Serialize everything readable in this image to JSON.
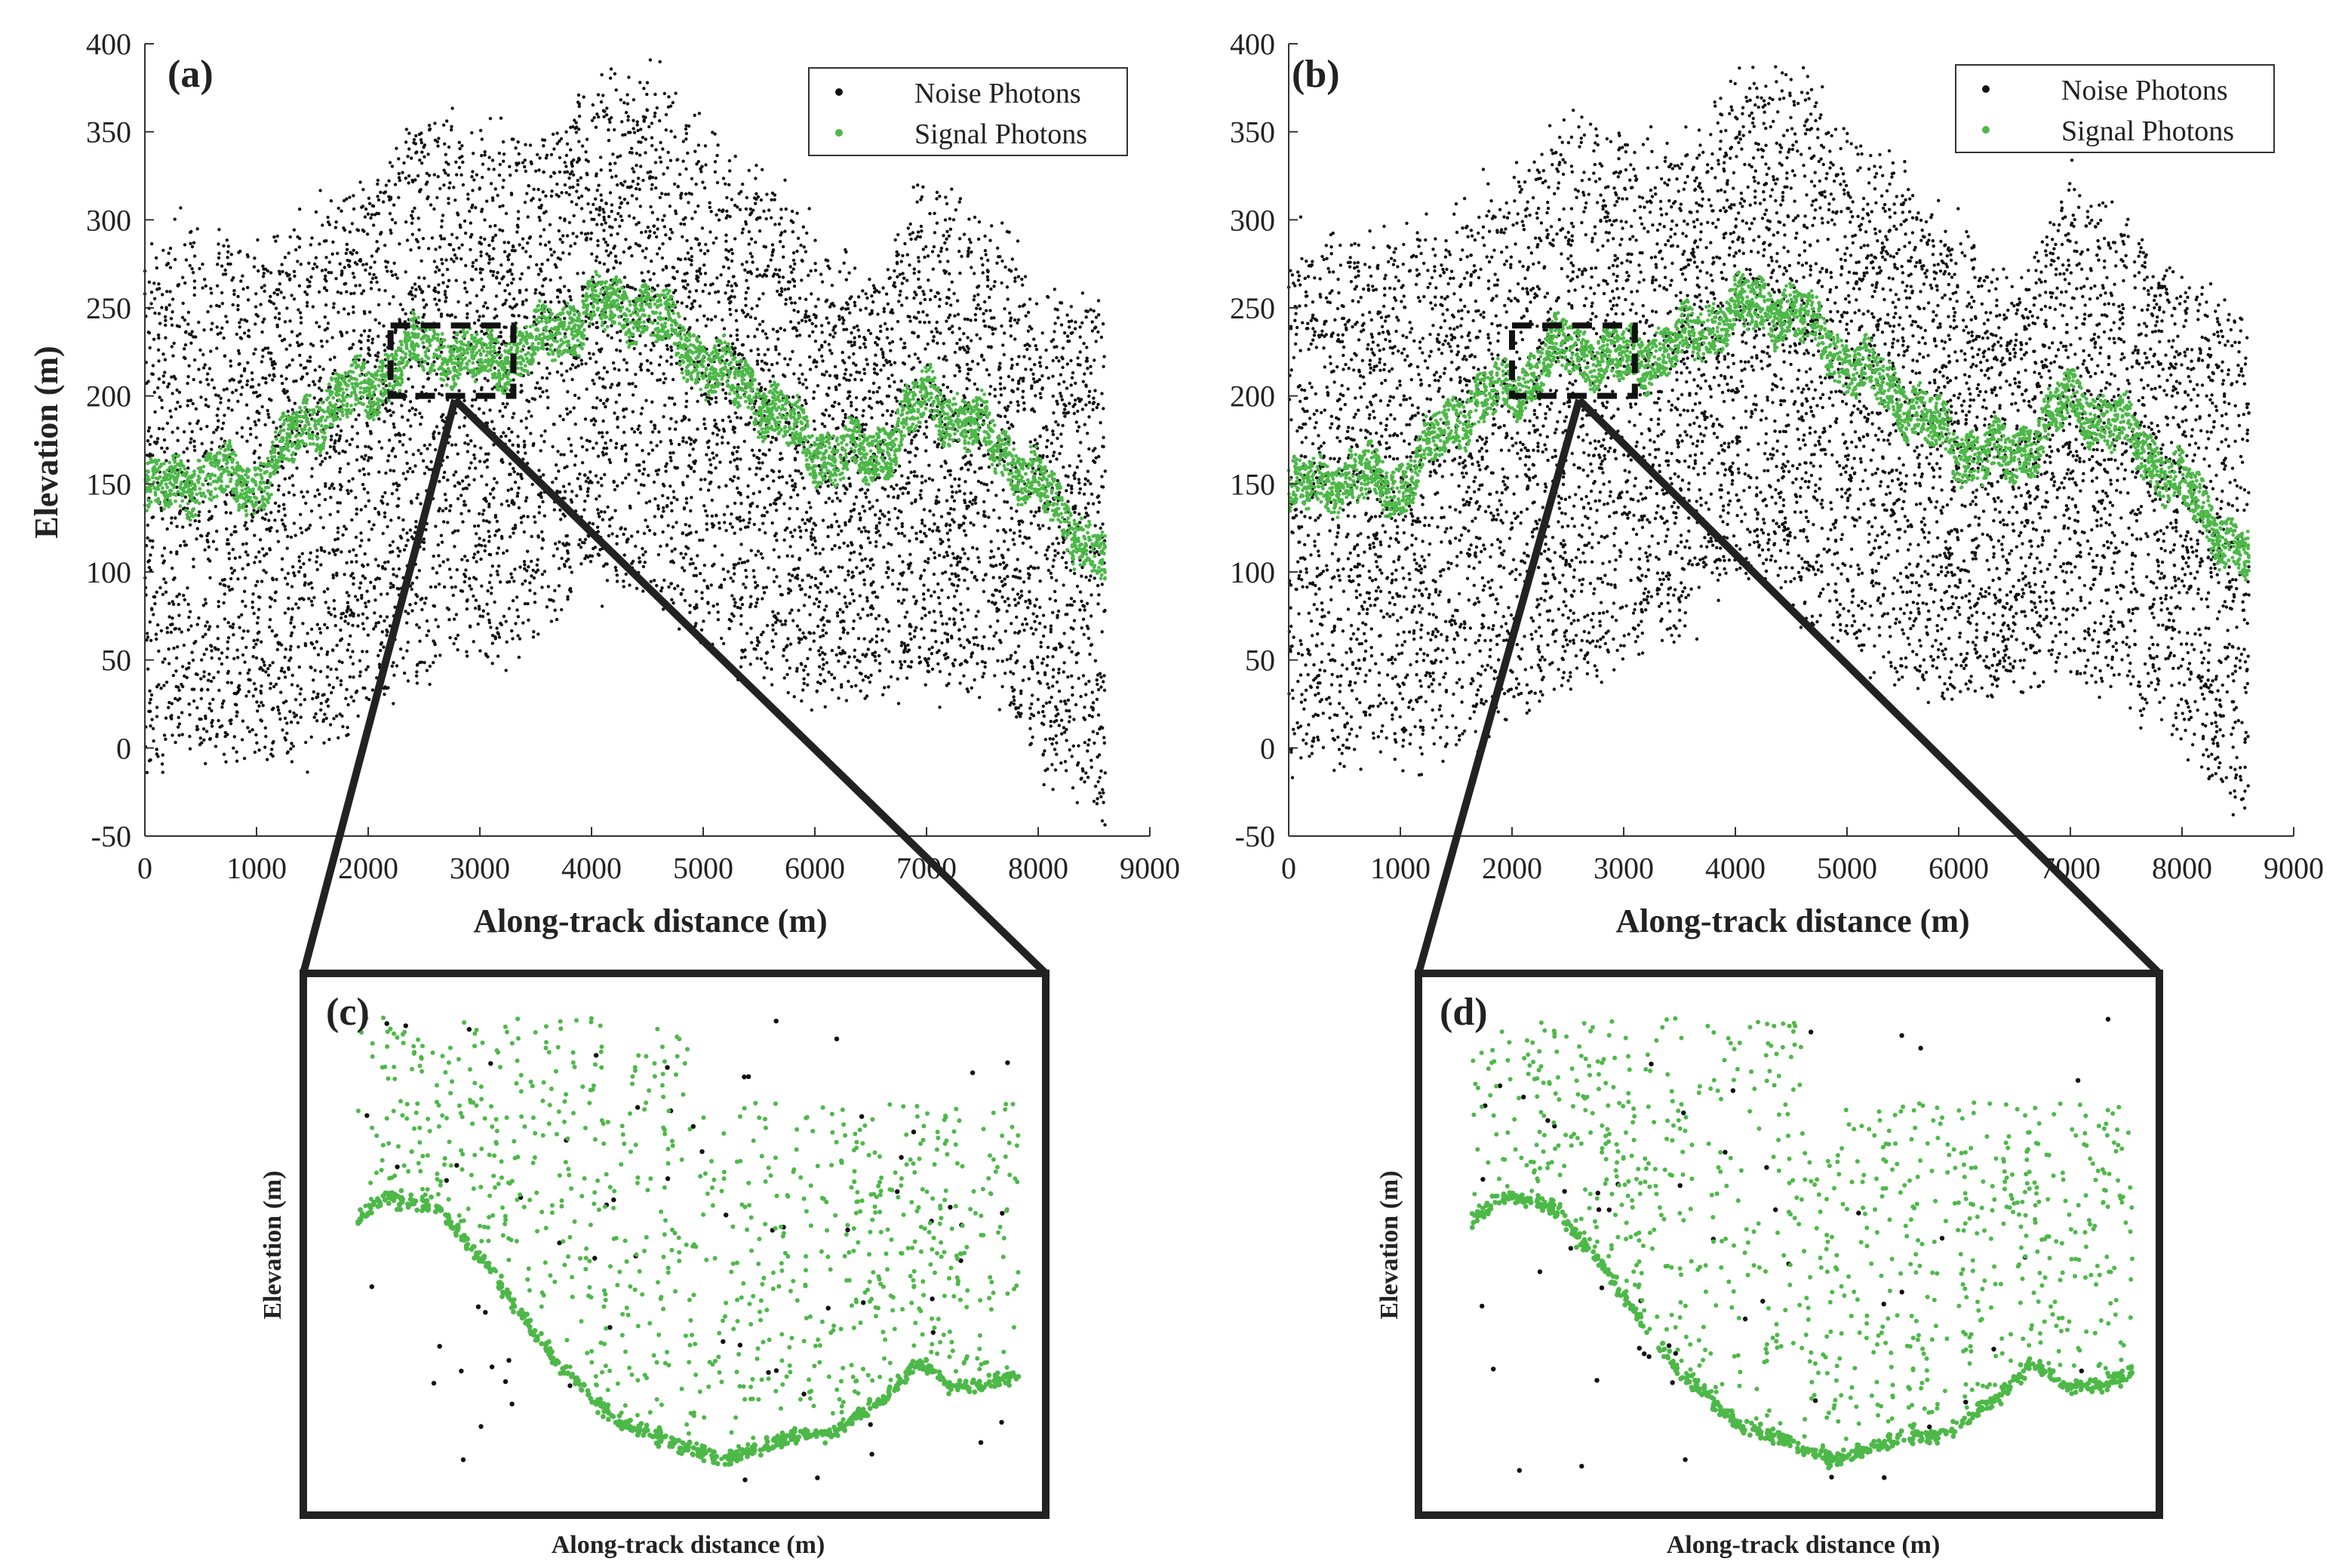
{
  "figure": {
    "colors": {
      "noise": "#111111",
      "signal": "#4db848",
      "axis": "#333333",
      "frame": "#222222"
    }
  },
  "chart_data": [
    {
      "id": "a",
      "panel_label": "(a)",
      "type": "scatter",
      "xlabel": "Along-track distance (m)",
      "ylabel": "Elevation (m)",
      "xlim": [
        0,
        9000
      ],
      "ylim": [
        -50,
        400
      ],
      "x_ticks": [
        "0",
        "1000",
        "2000",
        "3000",
        "4000",
        "5000",
        "6000",
        "7000",
        "8000",
        "9000"
      ],
      "y_ticks": [
        "-50",
        "0",
        "50",
        "100",
        "150",
        "200",
        "250",
        "300",
        "350",
        "400"
      ],
      "legend": {
        "placement": "top-right",
        "entries": [
          "Noise Photons",
          "Signal Photons"
        ]
      },
      "series": [
        {
          "name": "Noise Photons",
          "role": "noise",
          "upper_envelope": [
            [
              0,
              280
            ],
            [
              500,
              290
            ],
            [
              1000,
              285
            ],
            [
              1500,
              300
            ],
            [
              2000,
              320
            ],
            [
              2500,
              355
            ],
            [
              3000,
              345
            ],
            [
              3500,
              340
            ],
            [
              4000,
              375
            ],
            [
              4500,
              385
            ],
            [
              5000,
              350
            ],
            [
              5500,
              320
            ],
            [
              6000,
              290
            ],
            [
              6500,
              260
            ],
            [
              7000,
              320
            ],
            [
              7500,
              300
            ],
            [
              8000,
              260
            ],
            [
              8600,
              250
            ]
          ],
          "lower_envelope": [
            [
              0,
              -10
            ],
            [
              500,
              0
            ],
            [
              1000,
              -5
            ],
            [
              1500,
              0
            ],
            [
              2000,
              20
            ],
            [
              2500,
              40
            ],
            [
              3000,
              55
            ],
            [
              3500,
              60
            ],
            [
              4000,
              100
            ],
            [
              4500,
              90
            ],
            [
              5000,
              60
            ],
            [
              5500,
              40
            ],
            [
              6000,
              30
            ],
            [
              6500,
              35
            ],
            [
              7000,
              40
            ],
            [
              7500,
              30
            ],
            [
              8000,
              0
            ],
            [
              8600,
              -40
            ]
          ]
        },
        {
          "name": "Signal Photons",
          "role": "signal",
          "ground_profile": [
            [
              0,
              140
            ],
            [
              500,
              150
            ],
            [
              1000,
              145
            ],
            [
              1500,
              185
            ],
            [
              2000,
              200
            ],
            [
              2500,
              225
            ],
            [
              3000,
              215
            ],
            [
              3500,
              225
            ],
            [
              4000,
              245
            ],
            [
              4500,
              245
            ],
            [
              5000,
              215
            ],
            [
              5500,
              195
            ],
            [
              6000,
              165
            ],
            [
              6500,
              160
            ],
            [
              7000,
              195
            ],
            [
              7500,
              175
            ],
            [
              8000,
              145
            ],
            [
              8600,
              100
            ]
          ],
          "band_width_m": 28
        }
      ],
      "zoom_box": {
        "x_range": [
          2200,
          3300
        ],
        "y_range": [
          200,
          240
        ]
      }
    },
    {
      "id": "b",
      "panel_label": "(b)",
      "type": "scatter",
      "xlabel": "Along-track distance (m)",
      "ylabel": "",
      "xlim": [
        0,
        9000
      ],
      "ylim": [
        -50,
        400
      ],
      "x_ticks": [
        "0",
        "1000",
        "2000",
        "3000",
        "4000",
        "5000",
        "6000",
        "7000",
        "8000",
        "9000"
      ],
      "y_ticks": [
        "-50",
        "0",
        "50",
        "100",
        "150",
        "200",
        "250",
        "300",
        "350",
        "400"
      ],
      "legend": {
        "placement": "top-right",
        "entries": [
          "Noise Photons",
          "Signal Photons"
        ]
      },
      "series": [
        {
          "name": "Noise Photons",
          "role": "noise",
          "upper_envelope": [
            [
              0,
              280
            ],
            [
              500,
              290
            ],
            [
              1000,
              285
            ],
            [
              1500,
              300
            ],
            [
              2000,
              320
            ],
            [
              2500,
              355
            ],
            [
              3000,
              345
            ],
            [
              3500,
              340
            ],
            [
              4000,
              375
            ],
            [
              4500,
              385
            ],
            [
              5000,
              350
            ],
            [
              5500,
              320
            ],
            [
              6000,
              290
            ],
            [
              6500,
              260
            ],
            [
              7000,
              320
            ],
            [
              7500,
              300
            ],
            [
              8000,
              260
            ],
            [
              8600,
              250
            ]
          ],
          "lower_envelope": [
            [
              0,
              -10
            ],
            [
              500,
              0
            ],
            [
              1000,
              -5
            ],
            [
              1500,
              0
            ],
            [
              2000,
              20
            ],
            [
              2500,
              40
            ],
            [
              3000,
              55
            ],
            [
              3500,
              60
            ],
            [
              4000,
              100
            ],
            [
              4500,
              90
            ],
            [
              5000,
              60
            ],
            [
              5500,
              40
            ],
            [
              6000,
              30
            ],
            [
              6500,
              35
            ],
            [
              7000,
              40
            ],
            [
              7500,
              30
            ],
            [
              8000,
              0
            ],
            [
              8600,
              -40
            ]
          ]
        },
        {
          "name": "Signal Photons",
          "role": "signal",
          "ground_profile": [
            [
              0,
              140
            ],
            [
              500,
              150
            ],
            [
              1000,
              145
            ],
            [
              1500,
              185
            ],
            [
              2000,
              200
            ],
            [
              2500,
              225
            ],
            [
              3000,
              215
            ],
            [
              3500,
              225
            ],
            [
              4000,
              245
            ],
            [
              4500,
              245
            ],
            [
              5000,
              215
            ],
            [
              5500,
              195
            ],
            [
              6000,
              165
            ],
            [
              6500,
              160
            ],
            [
              7000,
              195
            ],
            [
              7500,
              175
            ],
            [
              8000,
              145
            ],
            [
              8600,
              100
            ]
          ],
          "band_width_m": 28
        }
      ],
      "zoom_box": {
        "x_range": [
          2000,
          3100
        ],
        "y_range": [
          200,
          240
        ]
      }
    },
    {
      "id": "c",
      "panel_label": "(c)",
      "type": "scatter",
      "xlabel": "Along-track distance (m)",
      "ylabel": "Elevation (m)",
      "xlim": [
        0,
        1
      ],
      "ylim": [
        0,
        1
      ],
      "series": [
        {
          "name": "Noise Photons",
          "role": "noise",
          "count": 70
        },
        {
          "name": "Signal Photons",
          "role": "signal",
          "ground_profile": [
            [
              0,
              0.55
            ],
            [
              0.05,
              0.6
            ],
            [
              0.12,
              0.58
            ],
            [
              0.2,
              0.45
            ],
            [
              0.3,
              0.25
            ],
            [
              0.4,
              0.12
            ],
            [
              0.5,
              0.07
            ],
            [
              0.55,
              0.04
            ],
            [
              0.65,
              0.09
            ],
            [
              0.72,
              0.1
            ],
            [
              0.8,
              0.18
            ],
            [
              0.85,
              0.25
            ],
            [
              0.9,
              0.2
            ],
            [
              0.95,
              0.2
            ],
            [
              1.0,
              0.23
            ]
          ],
          "canopy_count": 900
        }
      ]
    },
    {
      "id": "d",
      "panel_label": "(d)",
      "type": "scatter",
      "xlabel": "Along-track distance (m)",
      "ylabel": "Elevation (m)",
      "xlim": [
        0,
        1
      ],
      "ylim": [
        0,
        1
      ],
      "series": [
        {
          "name": "Noise Photons",
          "role": "noise",
          "count": 55
        },
        {
          "name": "Signal Photons",
          "role": "signal",
          "ground_profile": [
            [
              0,
              0.55
            ],
            [
              0.05,
              0.6
            ],
            [
              0.12,
              0.58
            ],
            [
              0.2,
              0.45
            ],
            [
              0.3,
              0.25
            ],
            [
              0.4,
              0.12
            ],
            [
              0.5,
              0.07
            ],
            [
              0.55,
              0.04
            ],
            [
              0.65,
              0.09
            ],
            [
              0.72,
              0.1
            ],
            [
              0.8,
              0.18
            ],
            [
              0.85,
              0.25
            ],
            [
              0.9,
              0.2
            ],
            [
              0.95,
              0.2
            ],
            [
              1.0,
              0.23
            ]
          ],
          "canopy_count": 900
        }
      ]
    }
  ]
}
